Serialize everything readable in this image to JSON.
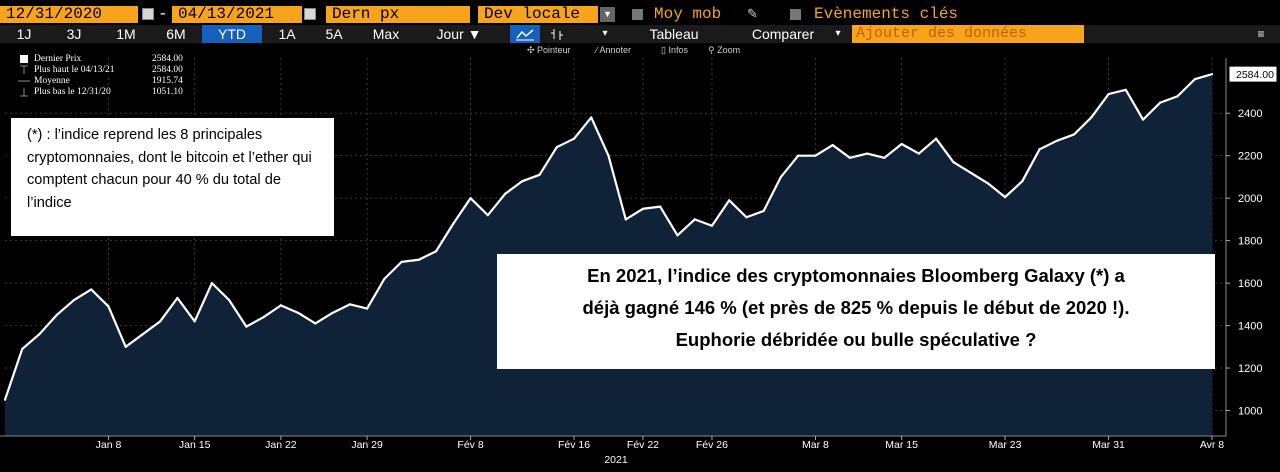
{
  "toolbar": {
    "start_date": "12/31/2020",
    "date_separator": "-",
    "end_date": "04/13/2021",
    "field": "Dern px",
    "currency": "Dev locale",
    "moving_avg": "Moy mob",
    "events": "Evènements clés"
  },
  "ranges": {
    "items": [
      "1J",
      "3J",
      "1M",
      "6M",
      "YTD",
      "1A",
      "5A",
      "Max",
      "Jour ▼"
    ],
    "active": "YTD"
  },
  "tools": {
    "table": "Tableau",
    "compare": "Comparer",
    "compare_arrow": "▾",
    "add_data": "Ajouter des données",
    "menu_icon": "hamburger-icon"
  },
  "subtools": {
    "pointer": "Pointeur",
    "annotate": "Annoter",
    "info": "Infos",
    "zoom": "Zoom"
  },
  "legend": {
    "rows": [
      {
        "label": "Dernier Prix",
        "value": "2584.00"
      },
      {
        "label": "Plus haut le 04/13/21",
        "value": "2584.00"
      },
      {
        "label": "Moyenne",
        "value": "1915.74"
      },
      {
        "label": "Plus bas le 12/31/20",
        "value": "1051.10"
      }
    ]
  },
  "annotations": {
    "note_small": "(*) : l’indice reprend les 8 principales cryptomonnaies, dont le bitcoin et l’ether qui comptent chacun pour 40 % du total de l’indice",
    "note_big_lines": [
      "En 2021, l’indice des cryptomonnaies Bloomberg Galaxy (*) a",
      "déjà gagné 146 % (et près de 825 % depuis le début de 2020 !).",
      "Euphorie débridée ou bulle spéculative ?"
    ]
  },
  "colors": {
    "background": "#000000",
    "fill": "#0f2238",
    "line": "#ffffff",
    "toolbar_orange": "#f7a31c",
    "active_tab": "#1560bd",
    "grid": "#3a3a3a"
  },
  "chart_data": {
    "type": "area",
    "title": "",
    "xlabel": "2021",
    "ylabel": "",
    "last_price_label": "2584.00",
    "ylim": [
      880,
      2660
    ],
    "y_ticks": [
      1000,
      1200,
      1400,
      1600,
      1800,
      2000,
      2200,
      2400
    ],
    "x_ticks": [
      {
        "label": "Jan 8",
        "index": 6
      },
      {
        "label": "Jan 15",
        "index": 11
      },
      {
        "label": "Jan 22",
        "index": 16
      },
      {
        "label": "Jan 29",
        "index": 21
      },
      {
        "label": "Fév 8",
        "index": 27
      },
      {
        "label": "Fév 16",
        "index": 33
      },
      {
        "label": "Fév 22",
        "index": 37
      },
      {
        "label": "Fév 26",
        "index": 41
      },
      {
        "label": "Mar 8",
        "index": 47
      },
      {
        "label": "Mar 15",
        "index": 52
      },
      {
        "label": "Mar 23",
        "index": 58
      },
      {
        "label": "Mar 31",
        "index": 64
      },
      {
        "label": "Avr 8",
        "index": 70
      }
    ],
    "values": [
      1051,
      1290,
      1360,
      1450,
      1520,
      1570,
      1490,
      1300,
      1360,
      1420,
      1530,
      1420,
      1600,
      1520,
      1395,
      1440,
      1495,
      1460,
      1410,
      1460,
      1500,
      1480,
      1620,
      1700,
      1710,
      1750,
      1880,
      2000,
      1920,
      2020,
      2080,
      2110,
      2240,
      2280,
      2380,
      2200,
      1900,
      1950,
      1960,
      1825,
      1900,
      1870,
      1990,
      1910,
      1940,
      2100,
      2200,
      2200,
      2250,
      2190,
      2210,
      2190,
      2255,
      2210,
      2280,
      2170,
      2120,
      2070,
      2005,
      2080,
      2230,
      2270,
      2300,
      2380,
      2490,
      2510,
      2370,
      2450,
      2480,
      2560,
      2584
    ]
  }
}
